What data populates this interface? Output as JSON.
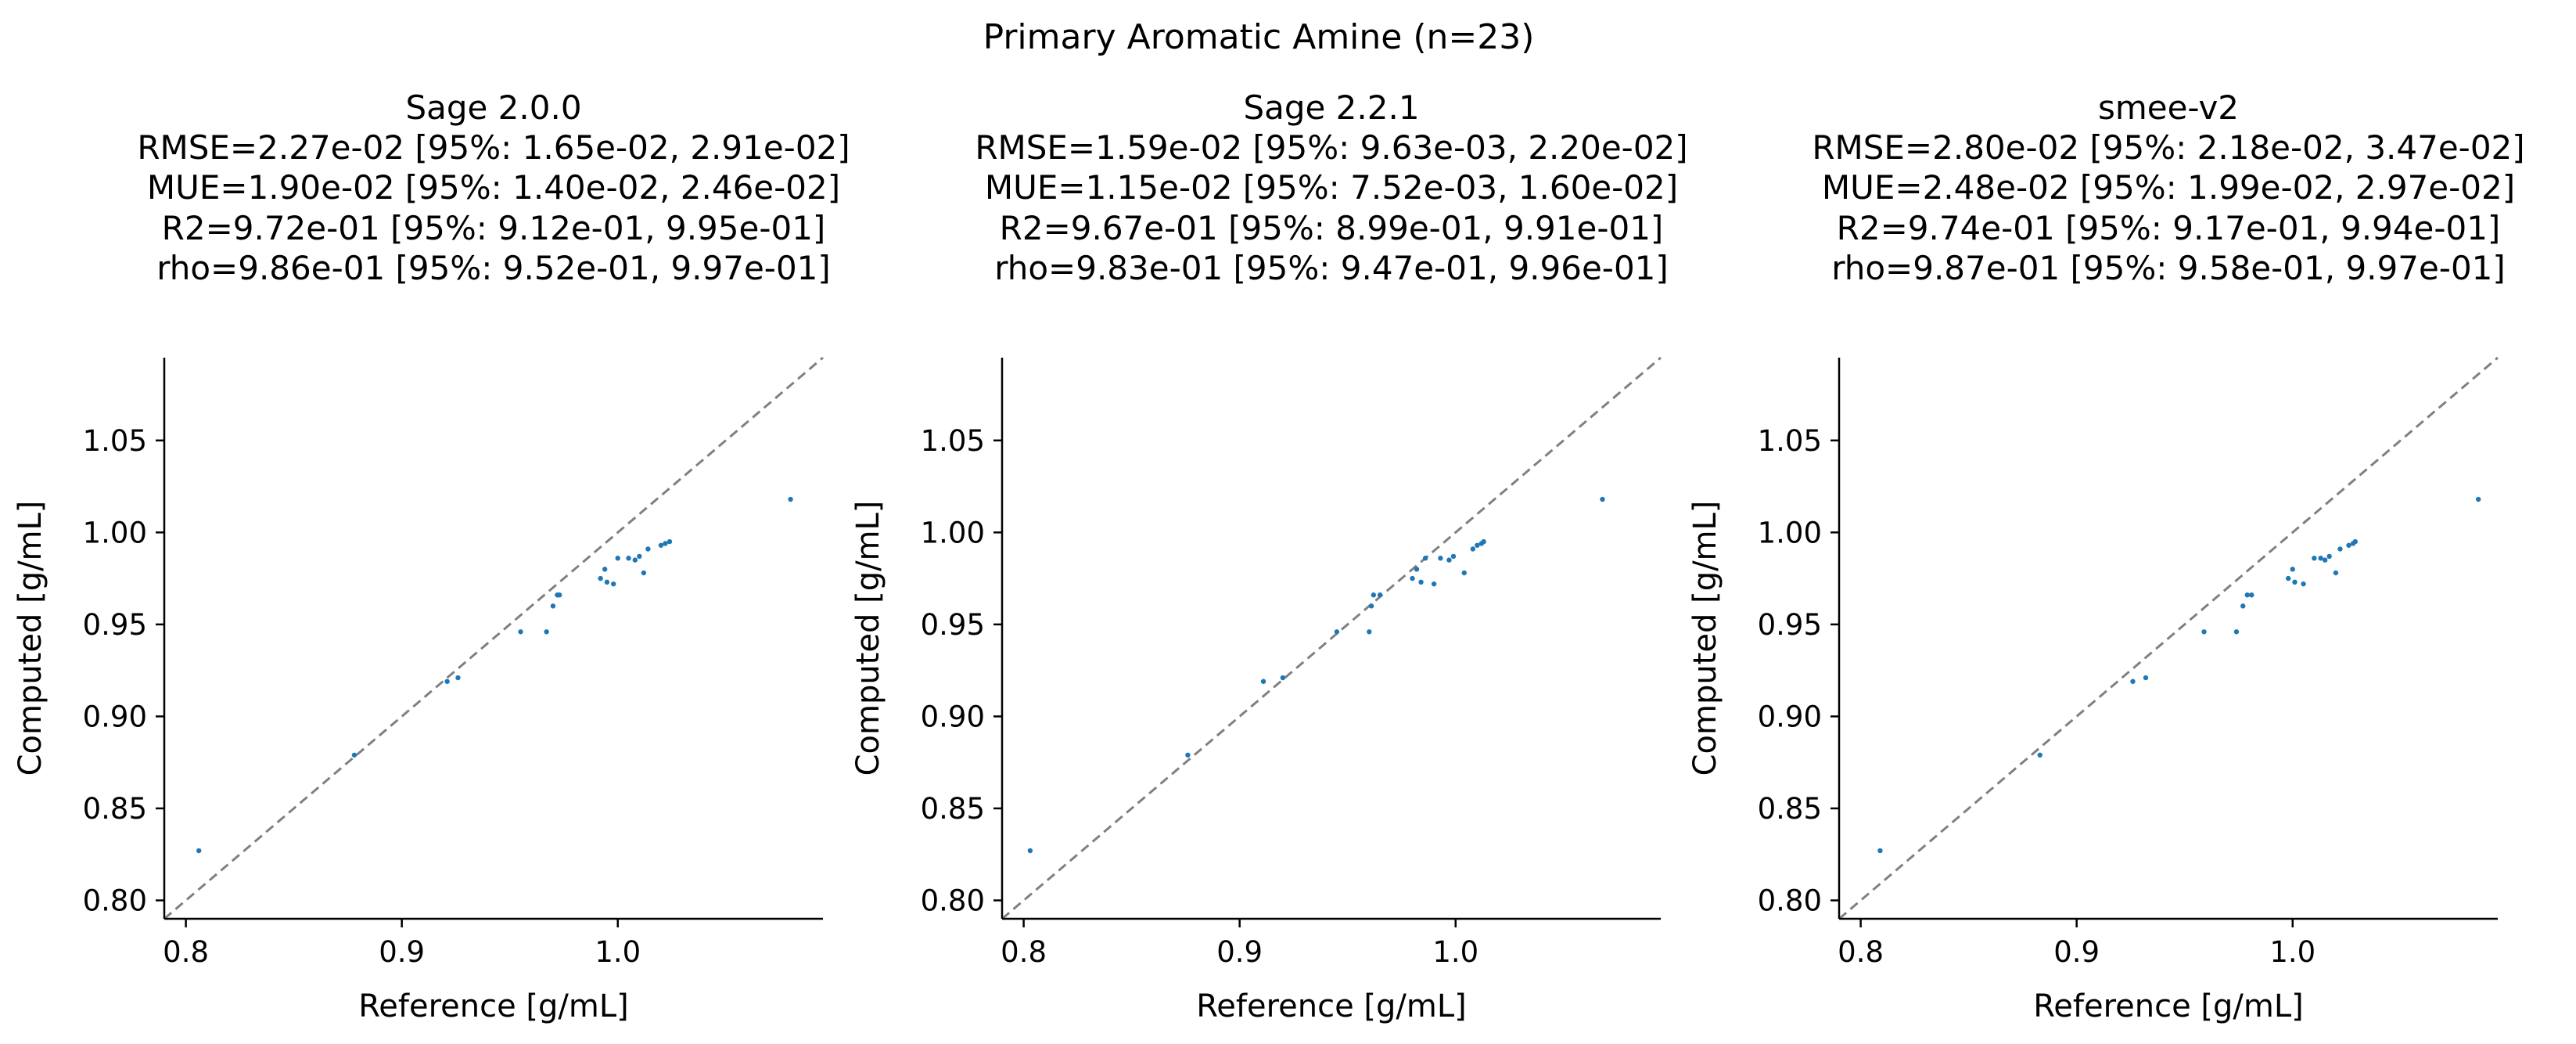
{
  "figure": {
    "title": "Primary Aromatic Amine (n=23)"
  },
  "chart_data": [
    {
      "type": "scatter",
      "title_lines": [
        "Sage 2.0.0",
        "RMSE=2.27e-02 [95%: 1.65e-02, 2.91e-02]",
        "MUE=1.90e-02 [95%: 1.40e-02, 2.46e-02]",
        "R2=9.72e-01 [95%: 9.12e-01, 9.95e-01]",
        "rho=9.86e-01 [95%: 9.52e-01, 9.97e-01]"
      ],
      "xlabel": "Reference [g/mL]",
      "ylabel": "Computed [g/mL]",
      "xlim": [
        0.79,
        1.095
      ],
      "ylim": [
        0.79,
        1.095
      ],
      "xticks": [
        "0.8",
        "0.9",
        "1.0"
      ],
      "yticks": [
        "0.80",
        "0.85",
        "0.90",
        "0.95",
        "1.00",
        "1.05"
      ],
      "x": [
        0.806,
        0.878,
        0.921,
        0.926,
        0.955,
        0.967,
        0.97,
        0.972,
        0.973,
        0.992,
        0.994,
        0.995,
        0.998,
        1.0,
        1.005,
        1.008,
        1.01,
        1.012,
        1.014,
        1.02,
        1.022,
        1.024,
        1.08
      ],
      "y": [
        0.827,
        0.879,
        0.919,
        0.921,
        0.946,
        0.946,
        0.96,
        0.966,
        0.966,
        0.975,
        0.98,
        0.973,
        0.972,
        0.986,
        0.986,
        0.985,
        0.987,
        0.978,
        0.991,
        0.993,
        0.994,
        0.995,
        1.018
      ]
    },
    {
      "type": "scatter",
      "title_lines": [
        "Sage 2.2.1",
        "RMSE=1.59e-02 [95%: 9.63e-03, 2.20e-02]",
        "MUE=1.15e-02 [95%: 7.52e-03, 1.60e-02]",
        "R2=9.67e-01 [95%: 8.99e-01, 9.91e-01]",
        "rho=9.83e-01 [95%: 9.47e-01, 9.96e-01]"
      ],
      "xlabel": "Reference [g/mL]",
      "ylabel": "Computed [g/mL]",
      "xlim": [
        0.79,
        1.095
      ],
      "ylim": [
        0.79,
        1.095
      ],
      "xticks": [
        "0.8",
        "0.9",
        "1.0"
      ],
      "yticks": [
        "0.80",
        "0.85",
        "0.90",
        "0.95",
        "1.00",
        "1.05"
      ],
      "x": [
        0.803,
        0.876,
        0.911,
        0.92,
        0.945,
        0.96,
        0.961,
        0.962,
        0.965,
        0.98,
        0.982,
        0.984,
        0.986,
        0.99,
        0.993,
        0.997,
        0.999,
        1.004,
        1.008,
        1.01,
        1.012,
        1.013,
        1.068
      ],
      "y": [
        0.827,
        0.879,
        0.919,
        0.921,
        0.946,
        0.946,
        0.96,
        0.966,
        0.966,
        0.975,
        0.98,
        0.973,
        0.986,
        0.972,
        0.986,
        0.985,
        0.987,
        0.978,
        0.991,
        0.993,
        0.994,
        0.995,
        1.018
      ]
    },
    {
      "type": "scatter",
      "title_lines": [
        "smee-v2",
        "RMSE=2.80e-02 [95%: 2.18e-02, 3.47e-02]",
        "MUE=2.48e-02 [95%: 1.99e-02, 2.97e-02]",
        "R2=9.74e-01 [95%: 9.17e-01, 9.94e-01]",
        "rho=9.87e-01 [95%: 9.58e-01, 9.97e-01]"
      ],
      "xlabel": "Reference [g/mL]",
      "ylabel": "Computed [g/mL]",
      "xlim": [
        0.79,
        1.095
      ],
      "ylim": [
        0.79,
        1.095
      ],
      "xticks": [
        "0.8",
        "0.9",
        "1.0"
      ],
      "yticks": [
        "0.80",
        "0.85",
        "0.90",
        "0.95",
        "1.00",
        "1.05"
      ],
      "x": [
        0.809,
        0.883,
        0.926,
        0.932,
        0.959,
        0.974,
        0.977,
        0.979,
        0.981,
        0.998,
        1.0,
        1.001,
        1.005,
        1.01,
        1.013,
        1.015,
        1.017,
        1.02,
        1.022,
        1.026,
        1.028,
        1.029,
        1.086
      ],
      "y": [
        0.827,
        0.879,
        0.919,
        0.921,
        0.946,
        0.946,
        0.96,
        0.966,
        0.966,
        0.975,
        0.98,
        0.973,
        0.972,
        0.986,
        0.986,
        0.985,
        0.987,
        0.978,
        0.991,
        0.993,
        0.994,
        0.995,
        1.018
      ]
    }
  ],
  "colors": {
    "points": "#1f77b4",
    "diagonal": "#808080",
    "axis": "#000000"
  }
}
